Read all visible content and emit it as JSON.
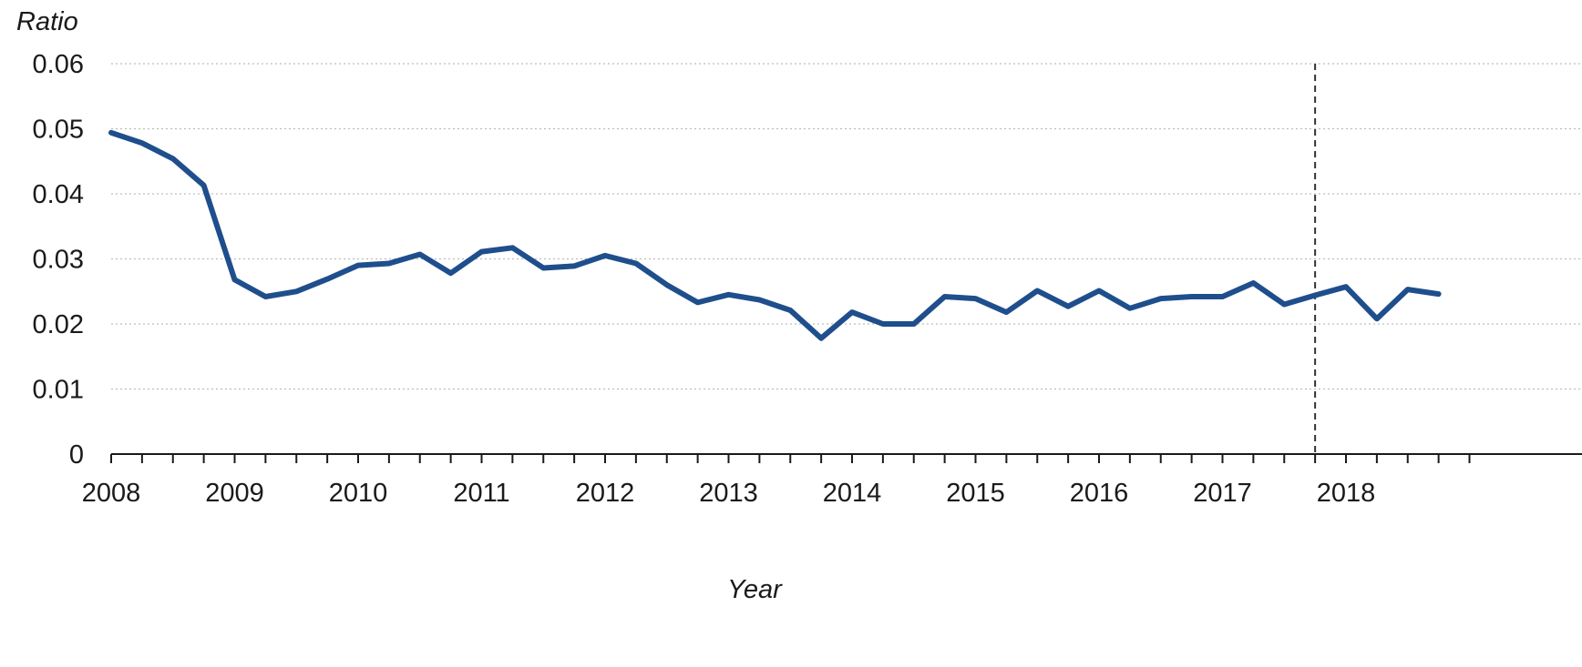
{
  "chart_data": {
    "type": "line",
    "title": "",
    "xlabel": "Year",
    "ylabel": "Ratio",
    "x_ticks": [
      "2008",
      "2009",
      "2010",
      "2011",
      "2012",
      "2013",
      "2014",
      "2015",
      "2016",
      "2017",
      "2018"
    ],
    "y_ticks": [
      "0",
      "0.01",
      "0.02",
      "0.03",
      "0.04",
      "0.05",
      "0.06"
    ],
    "ylim": [
      0,
      0.06
    ],
    "xlim": [
      2008,
      2019
    ],
    "grid": {
      "horizontal": true,
      "style": "dotted"
    },
    "colors": {
      "series": "#1f4e8c",
      "grid": "#bdbdbd",
      "axis": "#1a1a1a",
      "reference": "#333333"
    },
    "reference_line": {
      "x": 2017.75,
      "style": "dashed"
    },
    "series": [
      {
        "x": [
          2008.0,
          2008.25,
          2008.5,
          2008.75,
          2009.0,
          2009.25,
          2009.5,
          2009.75,
          2010.0,
          2010.25,
          2010.5,
          2010.75,
          2011.0,
          2011.25,
          2011.5,
          2011.75,
          2012.0,
          2012.25,
          2012.5,
          2012.75,
          2013.0,
          2013.25,
          2013.5,
          2013.75,
          2014.0,
          2014.25,
          2014.5,
          2014.75,
          2015.0,
          2015.25,
          2015.5,
          2015.75,
          2016.0,
          2016.25,
          2016.5,
          2016.75,
          2017.0,
          2017.25,
          2017.5,
          2017.75,
          2018.0,
          2018.25,
          2018.5,
          2018.75
        ],
        "values": [
          0.0494,
          0.0478,
          0.0454,
          0.0413,
          0.0268,
          0.0242,
          0.025,
          0.0269,
          0.029,
          0.0293,
          0.0307,
          0.0278,
          0.0311,
          0.0317,
          0.0286,
          0.0289,
          0.0305,
          0.0293,
          0.026,
          0.0233,
          0.0245,
          0.0237,
          0.0221,
          0.0178,
          0.0218,
          0.02,
          0.02,
          0.0242,
          0.0239,
          0.0218,
          0.0251,
          0.0227,
          0.0251,
          0.0224,
          0.0239,
          0.0242,
          0.0242,
          0.0263,
          0.023,
          0.0244,
          0.0257,
          0.0208,
          0.0253,
          0.0246
        ]
      }
    ]
  }
}
